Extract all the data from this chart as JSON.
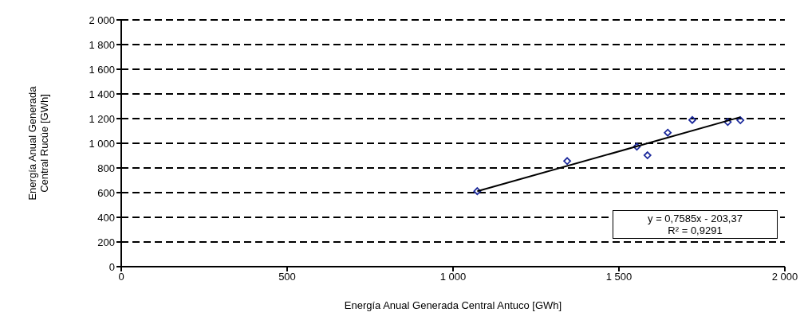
{
  "chart_data": {
    "type": "scatter",
    "xlabel": "Energía Anual Generada Central Antuco [GWh]",
    "ylabel": "Energía Anual Generada Central Rucúe [GWh]",
    "xlim": [
      0,
      2000
    ],
    "xticks": [
      0,
      500,
      {
        "value": 1000,
        "label": "1 000"
      },
      {
        "value": 1500,
        "label": "1 500"
      },
      {
        "value": 2000,
        "label": "2 000"
      }
    ],
    "ylim": [
      0,
      2000
    ],
    "yticks": [
      0,
      200,
      400,
      600,
      800,
      {
        "value": 1000,
        "label": "1 000"
      },
      {
        "value": 1200,
        "label": "1 200"
      },
      {
        "value": 1400,
        "label": "1 400"
      },
      {
        "value": 1600,
        "label": "1 600"
      },
      {
        "value": 1800,
        "label": "1 800"
      },
      {
        "value": 2000,
        "label": "2 000"
      }
    ],
    "grid": "y",
    "marker": "diamond",
    "legend": false,
    "series": [
      {
        "color": "#1c2a9c",
        "x": [
          1073,
          1344,
          1554,
          1586,
          1647,
          1721,
          1828,
          1866
        ],
        "values": [
          612,
          856,
          972,
          903,
          1086,
          1189,
          1172,
          1187
        ]
      },
      {
        "type": "line",
        "color": "#000000",
        "marker": "none",
        "x": [
          1073,
          1866
        ],
        "values": [
          611,
          1212
        ]
      }
    ],
    "annotations": [
      "y = 0,7585x - 203,37",
      "R² = 0,9291"
    ]
  }
}
